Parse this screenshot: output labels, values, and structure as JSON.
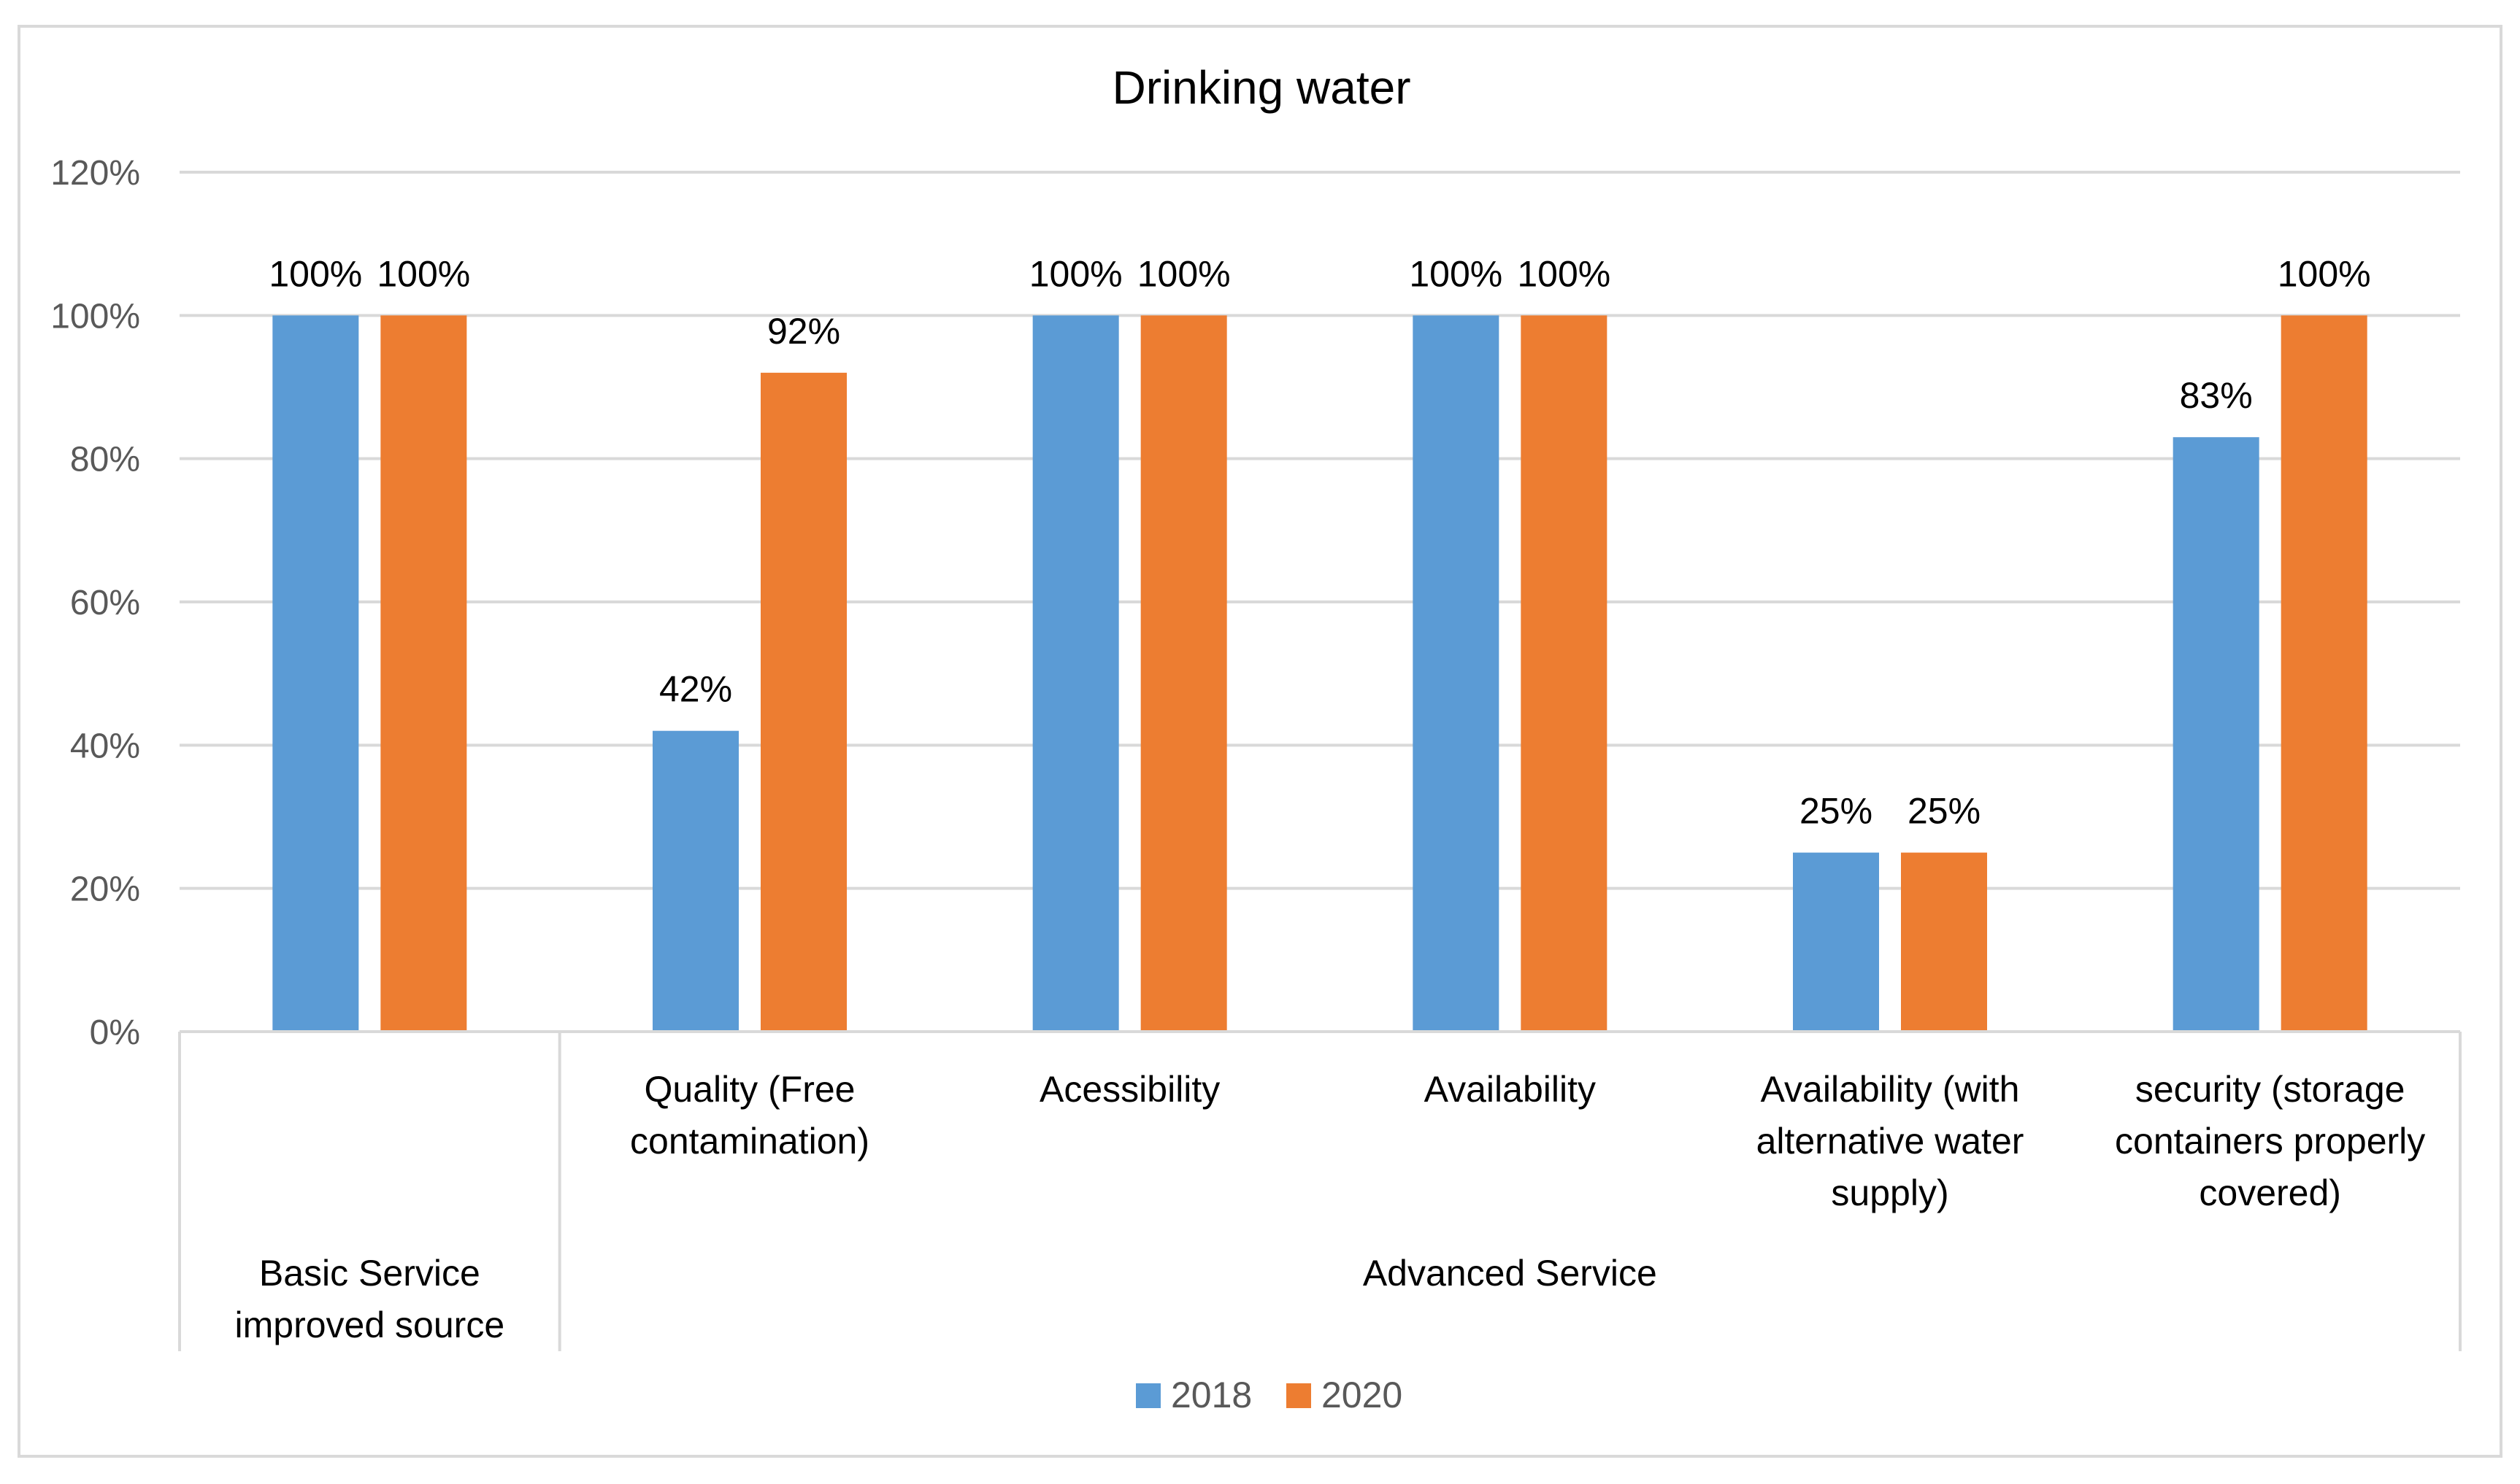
{
  "chart_data": {
    "type": "bar",
    "title": "Drinking water",
    "xlabel": "",
    "ylabel": "",
    "ylim": [
      0,
      1.2
    ],
    "yticks": [
      "0%",
      "20%",
      "40%",
      "60%",
      "80%",
      "100%",
      "120%"
    ],
    "grid": true,
    "legend_position": "bottom",
    "categories": [
      "",
      "Quality (Free contamination)",
      "Acessibility",
      "Availability",
      "Availability (with alternative water supply)",
      "security (storage containers properly covered)"
    ],
    "category_lines": [
      [],
      [
        "Quality (Free",
        "contamination)"
      ],
      [
        "Acessibility"
      ],
      [
        "Availability"
      ],
      [
        "Availability (with",
        "alternative water",
        "supply)"
      ],
      [
        "security (storage",
        "containers properly",
        "covered)"
      ]
    ],
    "groups": [
      {
        "label_lines": [
          "Basic Service",
          "improved source"
        ],
        "span": [
          0,
          0
        ]
      },
      {
        "label_lines": [
          "Advanced Service"
        ],
        "span": [
          1,
          5
        ]
      }
    ],
    "series": [
      {
        "name": "2018",
        "color": "#5b9bd5",
        "values": [
          1.0,
          0.42,
          1.0,
          1.0,
          0.25,
          0.83
        ],
        "labels": [
          "100%",
          "42%",
          "100%",
          "100%",
          "25%",
          "83%"
        ]
      },
      {
        "name": "2020",
        "color": "#ed7d31",
        "values": [
          1.0,
          0.92,
          1.0,
          1.0,
          0.25,
          1.0
        ],
        "labels": [
          "100%",
          "92%",
          "100%",
          "100%",
          "25%",
          "100%"
        ]
      }
    ]
  }
}
